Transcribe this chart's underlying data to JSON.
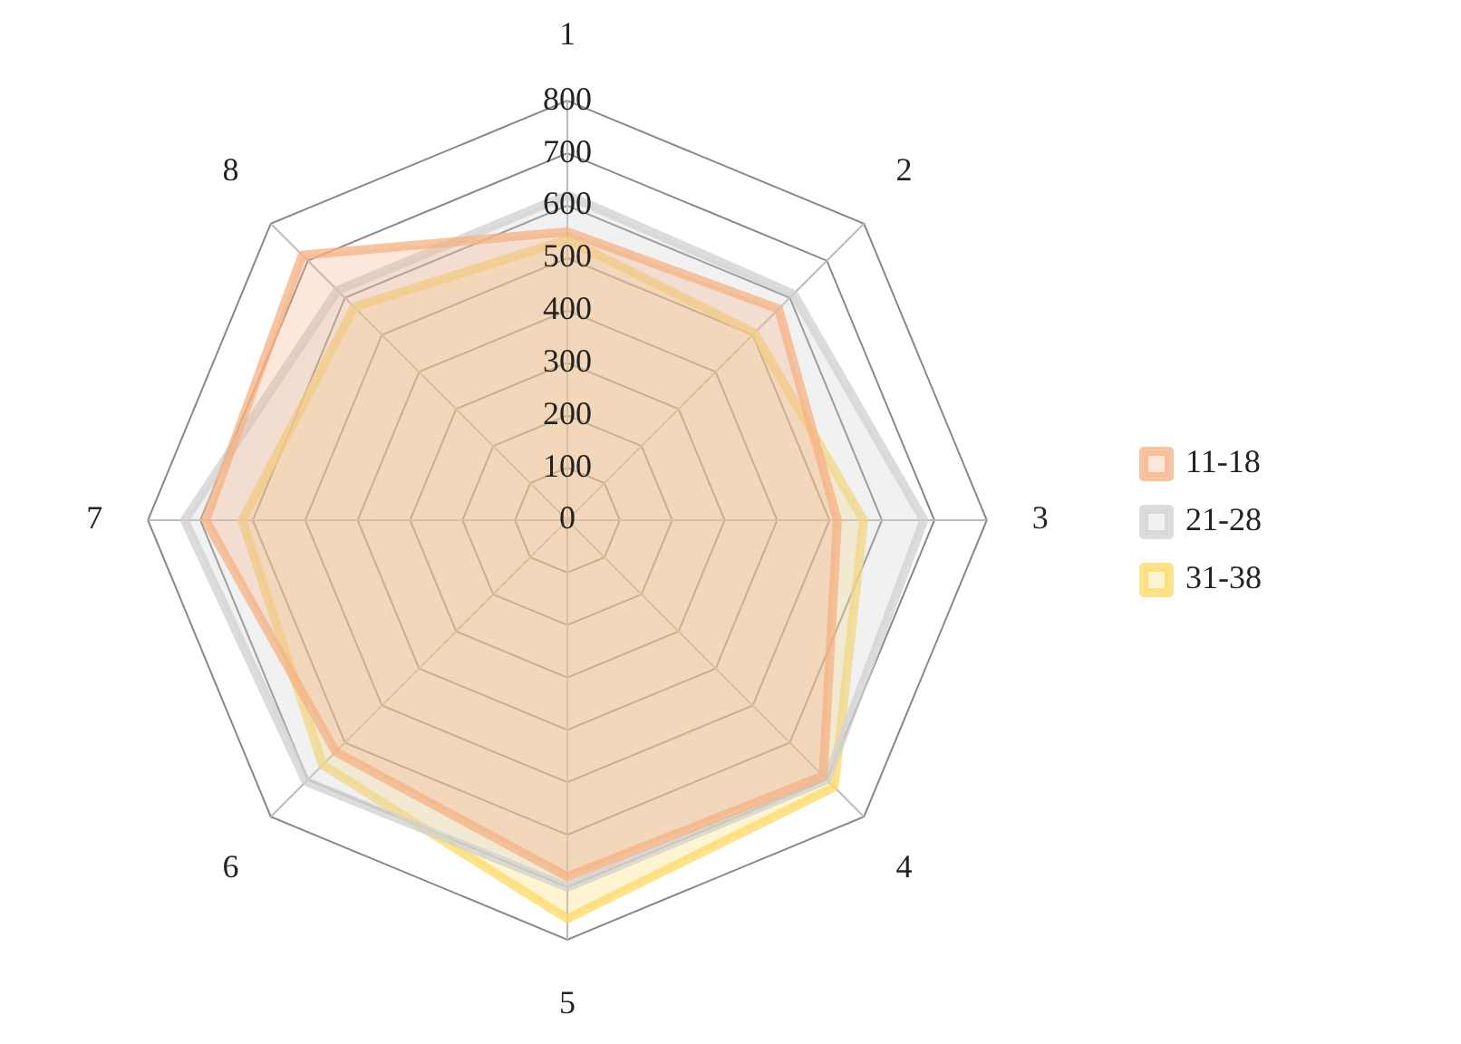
{
  "chart_data": {
    "type": "radar",
    "categories": [
      "1",
      "2",
      "3",
      "4",
      "5",
      "6",
      "7",
      "8"
    ],
    "series": [
      {
        "name": "11-18",
        "color": "#f4b183",
        "values": [
          550,
          570,
          515,
          690,
          680,
          625,
          690,
          715
        ]
      },
      {
        "name": "21-28",
        "color": "#d0d0d0",
        "values": [
          620,
          610,
          680,
          700,
          700,
          705,
          730,
          620
        ]
      },
      {
        "name": "31-38",
        "color": "#ffd966",
        "values": [
          535,
          505,
          565,
          720,
          760,
          660,
          620,
          575
        ]
      }
    ],
    "ylim": [
      0,
      800
    ],
    "yticks": [
      0,
      100,
      200,
      300,
      400,
      500,
      600,
      700,
      800
    ],
    "grid": true,
    "legend": "right",
    "marker": "none"
  }
}
